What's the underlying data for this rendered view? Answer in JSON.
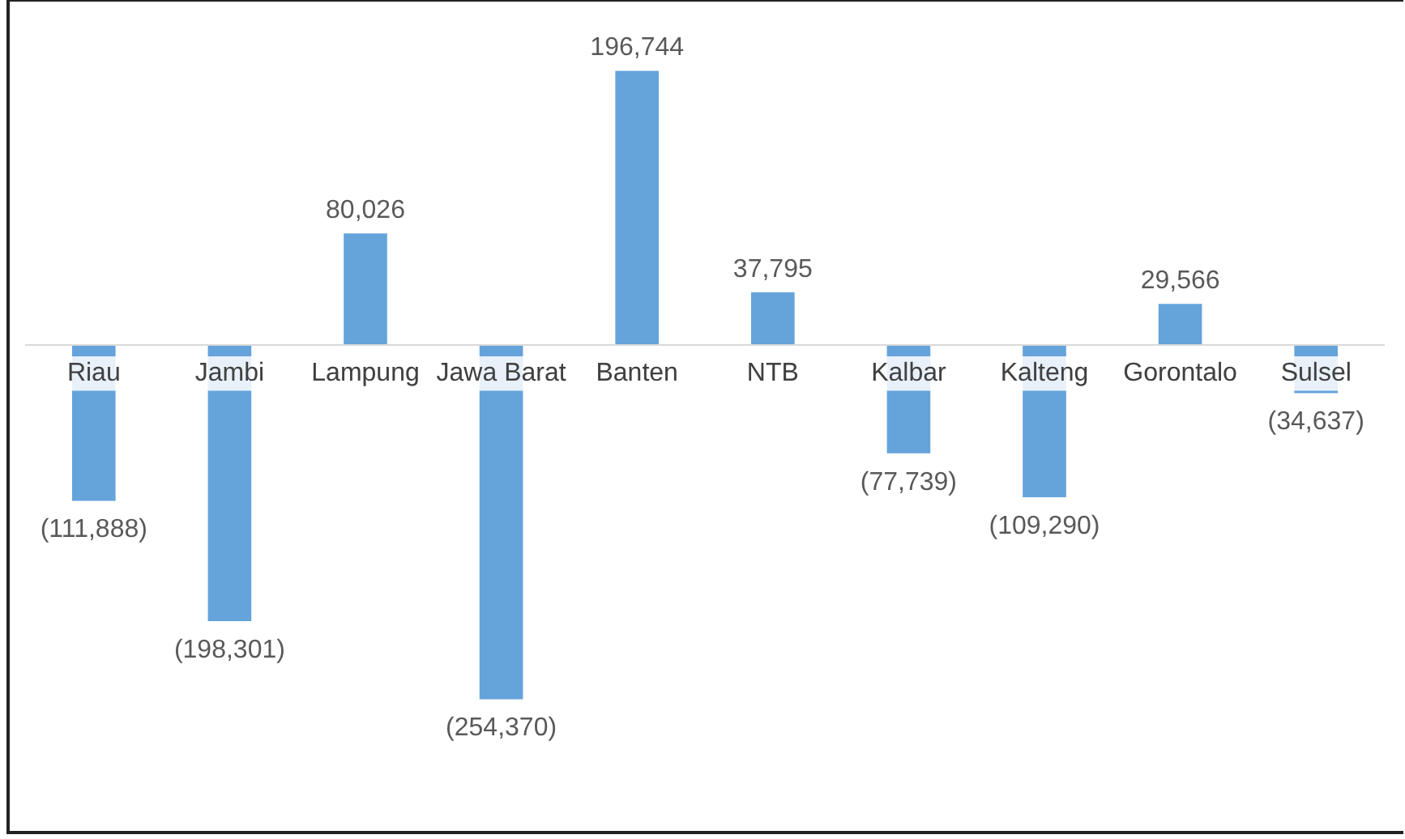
{
  "chart_data": {
    "type": "bar",
    "categories": [
      "Riau",
      "Jambi",
      "Lampung",
      "Jawa Barat",
      "Banten",
      "NTB",
      "Kalbar",
      "Kalteng",
      "Gorontalo",
      "Sulsel"
    ],
    "values": [
      -111888,
      -198301,
      80026,
      -254370,
      196744,
      37795,
      -77739,
      -109290,
      29566,
      -34637
    ],
    "value_labels": [
      "(111,888)",
      "(198,301)",
      "80,026",
      "(254,370)",
      "196,744",
      "37,795",
      "(77,739)",
      "(109,290)",
      "29,566",
      "(34,637)"
    ],
    "color": "#65a3db",
    "grid": false,
    "legend": false,
    "tick_labels": "x"
  }
}
